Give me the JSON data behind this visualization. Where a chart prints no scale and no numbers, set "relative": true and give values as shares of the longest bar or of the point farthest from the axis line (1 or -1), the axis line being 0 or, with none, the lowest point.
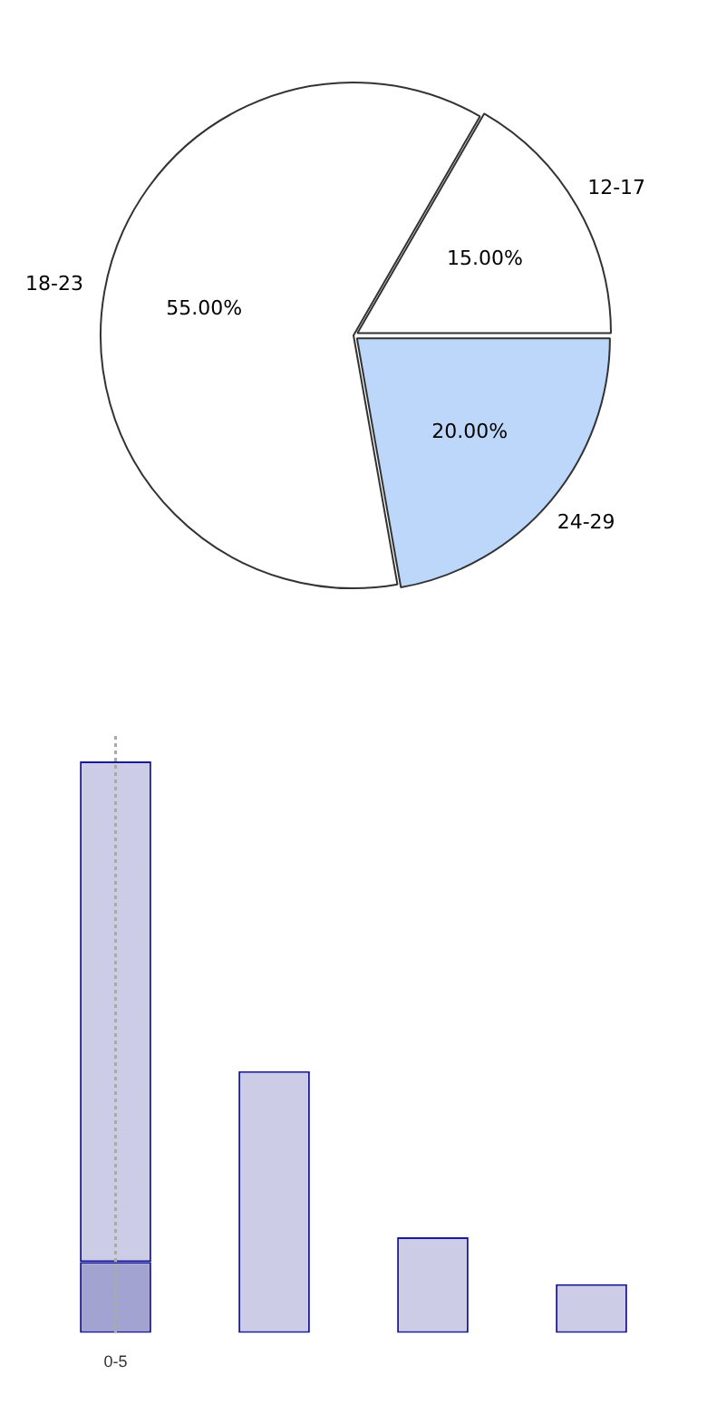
{
  "chart_data": [
    {
      "type": "pie",
      "categories": [
        "12-17",
        "24-29",
        "18-23"
      ],
      "values": [
        15,
        20,
        55
      ],
      "colors": [
        "#ffffff",
        "#bdd7fb",
        "#ffffff"
      ],
      "value_labels": [
        "15.00%",
        "20.00%",
        "55.00%"
      ],
      "legend": false
    },
    {
      "type": "bar",
      "categories": [
        "0-5",
        null,
        null,
        null
      ],
      "relative": true,
      "stacked": true,
      "legend": false,
      "grid": false,
      "series": [
        {
          "color": "#a3a3d1",
          "values": [
            0.124,
            null,
            null,
            null
          ]
        },
        {
          "color": "#ccccE6",
          "values": [
            0.876,
            0.458,
            0.167,
            0.085
          ]
        }
      ],
      "ref_lines": [
        {
          "axis": "x",
          "value": "0-5",
          "color": "#aaaaaa",
          "line_style": "dotted"
        }
      ]
    }
  ]
}
